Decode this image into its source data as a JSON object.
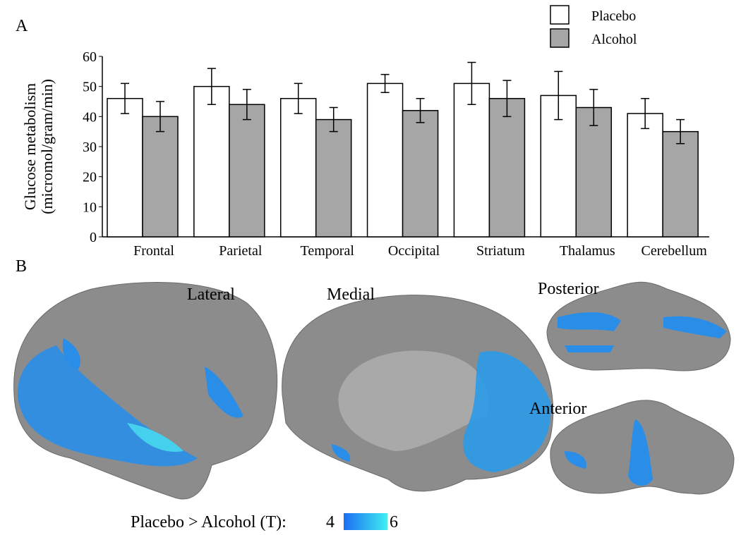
{
  "chart_data": {
    "type": "bar",
    "panel_label": "A",
    "y_label": [
      "Glucose metabolism",
      "(micromol/gram/min)"
    ],
    "categories": [
      "Frontal",
      "Parietal",
      "Temporal",
      "Occipital",
      "Striatum",
      "Thalamus",
      "Cerebellum"
    ],
    "series": [
      {
        "name": "Placebo",
        "color": "#ffffff",
        "values": [
          46,
          50,
          46,
          51,
          51,
          47,
          41
        ],
        "errors": [
          5,
          6,
          5,
          3,
          7,
          8,
          5
        ]
      },
      {
        "name": "Alcohol",
        "color": "#a6a6a6",
        "values": [
          40,
          44,
          39,
          42,
          46,
          43,
          35
        ],
        "errors": [
          5,
          5,
          4,
          4,
          6,
          6,
          4
        ]
      }
    ],
    "ylim": [
      0,
      60
    ],
    "yticks": [
      0,
      10,
      20,
      30,
      40,
      50,
      60
    ],
    "legend": "upper right",
    "grid": false
  },
  "panel_b": {
    "panel_label": "B",
    "views": [
      "Lateral",
      "Medial",
      "Posterior",
      "Anterior"
    ],
    "colorbar": {
      "label": "Placebo  > Alcohol (T):",
      "min": 4,
      "max": 6,
      "colors": [
        "#1a6ef2",
        "#40eef2"
      ]
    }
  }
}
